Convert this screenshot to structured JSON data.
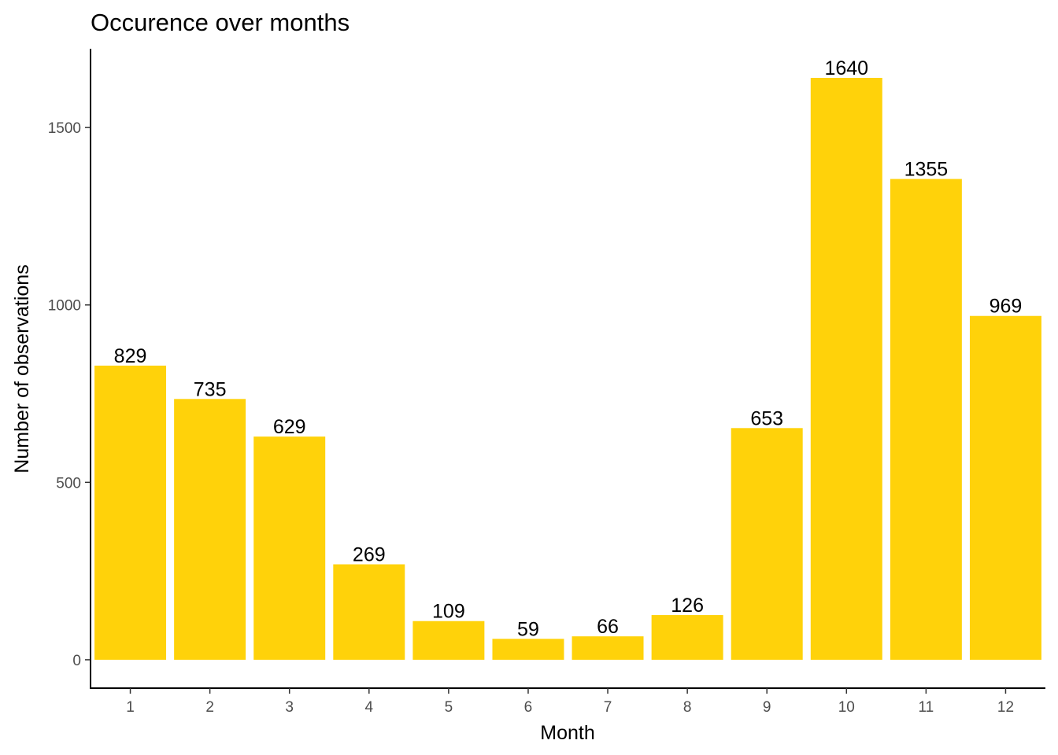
{
  "chart_data": {
    "type": "bar",
    "title": "Occurence over months",
    "xlabel": "Month",
    "ylabel": "Number of observations",
    "categories": [
      "1",
      "2",
      "3",
      "4",
      "5",
      "6",
      "7",
      "8",
      "9",
      "10",
      "11",
      "12"
    ],
    "values": [
      829,
      735,
      629,
      269,
      109,
      59,
      66,
      126,
      653,
      1640,
      1355,
      969
    ],
    "yticks": [
      0,
      500,
      1000,
      1500
    ],
    "ylim": [
      -80,
      1722
    ],
    "grid": false,
    "legend": "none",
    "bar_color": "#FFD20A"
  }
}
